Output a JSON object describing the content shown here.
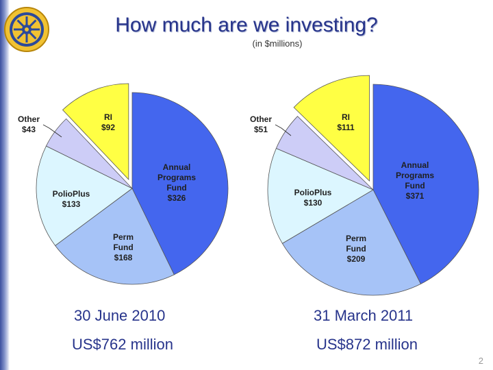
{
  "header": {
    "title": "How much are we investing?",
    "subtitle": "(in $millions)"
  },
  "logo": {
    "name": "rotary-wheel-logo"
  },
  "chart_data": [
    {
      "type": "pie",
      "slices": [
        {
          "label": "Annual Programs Fund",
          "value": 326,
          "value_label": "$326",
          "color": "#4466ee"
        },
        {
          "label": "Perm Fund",
          "value": 168,
          "value_label": "$168",
          "color": "#a6c3f7"
        },
        {
          "label": "PolioPlus",
          "value": 133,
          "value_label": "$133",
          "color": "#dcf6ff"
        },
        {
          "label": "Other",
          "value": 43,
          "value_label": "$43",
          "color": "#cdcdf7"
        },
        {
          "label": "RI",
          "value": 92,
          "value_label": "$92",
          "color": "#ffff44"
        }
      ],
      "date": "30 June 2010",
      "total": "US$762 million"
    },
    {
      "type": "pie",
      "slices": [
        {
          "label": "Annual Programs Fund",
          "value": 371,
          "value_label": "$371",
          "color": "#4466ee"
        },
        {
          "label": "Perm Fund",
          "value": 209,
          "value_label": "$209",
          "color": "#a6c3f7"
        },
        {
          "label": "PolioPlus",
          "value": 130,
          "value_label": "$130",
          "color": "#dcf6ff"
        },
        {
          "label": "Other",
          "value": 51,
          "value_label": "$51",
          "color": "#cdcdf7"
        },
        {
          "label": "RI",
          "value": 111,
          "value_label": "$111",
          "color": "#ffff44"
        }
      ],
      "date": "31 March 2011",
      "total": "US$872 million"
    }
  ],
  "footer": {
    "page_number": "2"
  }
}
